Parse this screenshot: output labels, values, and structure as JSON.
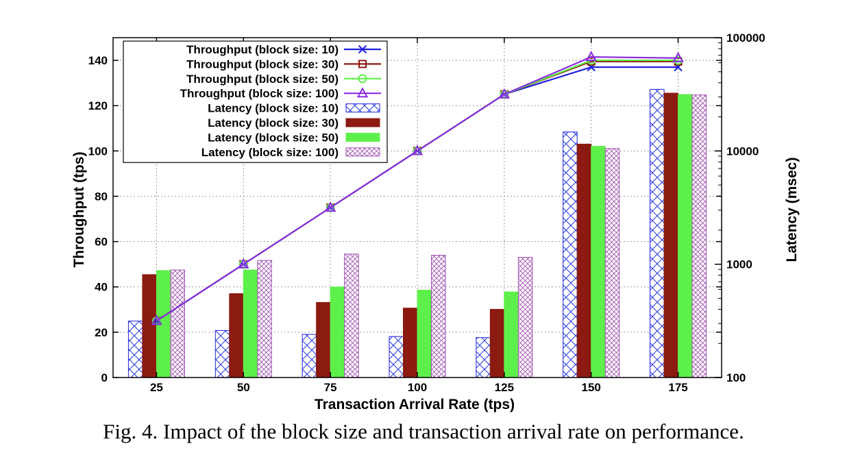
{
  "caption": "Fig. 4.  Impact of the block size and transaction arrival rate on performance.",
  "chart_data": {
    "type": "bar",
    "xlabel": "Transaction Arrival Rate (tps)",
    "ylabel_left": "Throughput (tps)",
    "ylabel_right": "Latency (msec)",
    "categories": [
      "25",
      "50",
      "75",
      "100",
      "125",
      "150",
      "175"
    ],
    "ylim_left": [
      0,
      150
    ],
    "yticks_left": [
      0,
      20,
      40,
      60,
      80,
      100,
      120,
      140
    ],
    "ylim_right": [
      100,
      100000
    ],
    "yticks_right": [
      100,
      1000,
      10000,
      100000
    ],
    "right_axis_scale": "log",
    "grid": true,
    "legend_position": "top-left",
    "line_series": [
      {
        "name": "Throughput (block size: 10)",
        "color": "#1f1fe0",
        "marker": "x",
        "values": [
          25,
          50,
          75,
          100,
          125,
          137,
          137
        ]
      },
      {
        "name": "Throughput (block size: 30)",
        "color": "#8b1a10",
        "marker": "square",
        "values": [
          25,
          50,
          75,
          100,
          125,
          139.5,
          139.5
        ]
      },
      {
        "name": "Throughput (block size: 50)",
        "color": "#5ef04a",
        "marker": "circle",
        "values": [
          25,
          50,
          75,
          100,
          125,
          140,
          140
        ]
      },
      {
        "name": "Throughput (block size: 100)",
        "color": "#8a2be2",
        "marker": "triangle",
        "values": [
          25,
          50,
          75,
          100,
          125,
          141.5,
          141
        ]
      }
    ],
    "bar_series": [
      {
        "name": "Latency (block size: 10)",
        "color": "#1f1fe0",
        "fill": "crosshatch",
        "values": [
          315,
          260,
          240,
          230,
          225,
          14700,
          35000
        ]
      },
      {
        "name": "Latency (block size: 30)",
        "color": "#8b1a10",
        "fill": "solid",
        "values": [
          810,
          550,
          460,
          410,
          400,
          11500,
          32400
        ]
      },
      {
        "name": "Latency (block size: 50)",
        "color": "#5ef04a",
        "fill": "solid",
        "values": [
          880,
          890,
          630,
          590,
          570,
          11000,
          31500
        ]
      },
      {
        "name": "Latency (block size: 100)",
        "color": "#a050b0",
        "fill": "fine-crosshatch",
        "values": [
          890,
          1080,
          1230,
          1200,
          1150,
          10500,
          31200
        ]
      }
    ]
  }
}
